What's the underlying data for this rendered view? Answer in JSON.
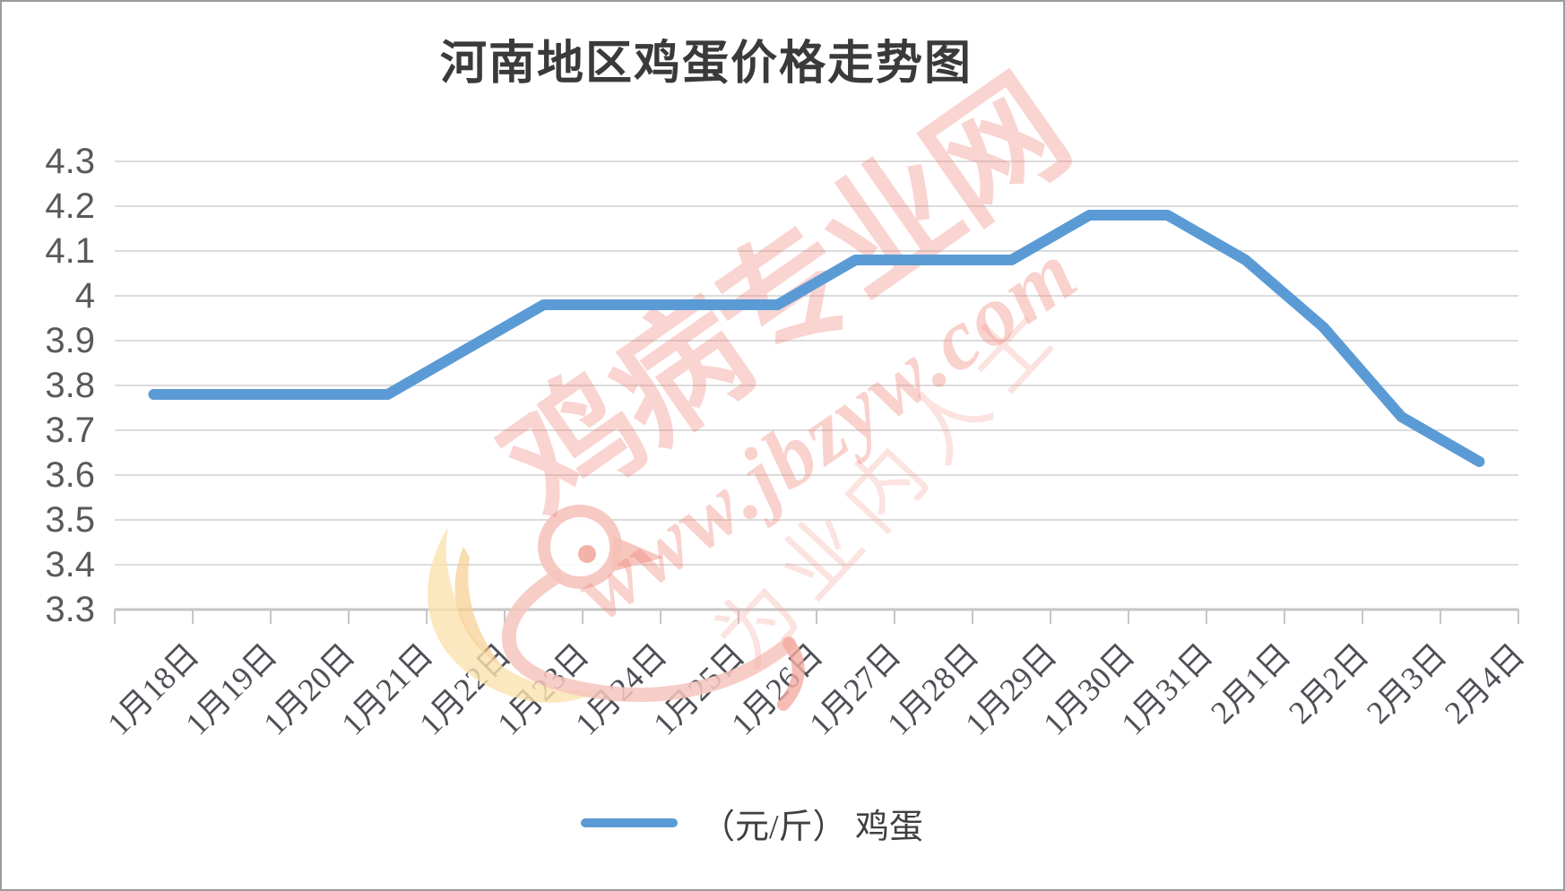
{
  "page": {
    "background": "#FFFFFF",
    "border_color": "#9B9B9B"
  },
  "chart_data": {
    "type": "line",
    "title": "河南地区鸡蛋价格走势图",
    "categories": [
      "1月18日",
      "1月19日",
      "1月20日",
      "1月21日",
      "1月22日",
      "1月23日",
      "1月24日",
      "1月25日",
      "1月26日",
      "1月27日",
      "1月28日",
      "1月29日",
      "1月30日",
      "1月31日",
      "2月1日",
      "2月2日",
      "2月3日",
      "2月4日"
    ],
    "series": [
      {
        "name": "（元/斤） 鸡蛋",
        "color": "#5B9BD5",
        "values": [
          3.78,
          3.78,
          3.78,
          3.78,
          3.88,
          3.98,
          3.98,
          3.98,
          3.98,
          4.08,
          4.08,
          4.08,
          4.18,
          4.18,
          4.08,
          3.93,
          3.73,
          3.63
        ]
      }
    ],
    "xlabel": "",
    "ylabel": "",
    "ylim": [
      3.3,
      4.3
    ],
    "yticks": [
      3.3,
      3.4,
      3.5,
      3.6,
      3.7,
      3.8,
      3.9,
      4.0,
      4.1,
      4.2,
      4.3
    ],
    "grid": "horizontal",
    "legend_position": "bottom"
  },
  "legend": {
    "marker_color": "#5B9BD5",
    "label": "（元/斤） 鸡蛋"
  },
  "watermark": {
    "brand": "鸡病专业网",
    "url": "www.jbzyw.com",
    "slogan": "为业内人士",
    "brand_color": "#EE7C72"
  },
  "style": {
    "line_color": "#5B9BD5",
    "grid_color": "#DCDCDC",
    "axis_color": "#C6C6C6",
    "tick_label_color": "#595959",
    "title_color": "#3A3A3A"
  }
}
